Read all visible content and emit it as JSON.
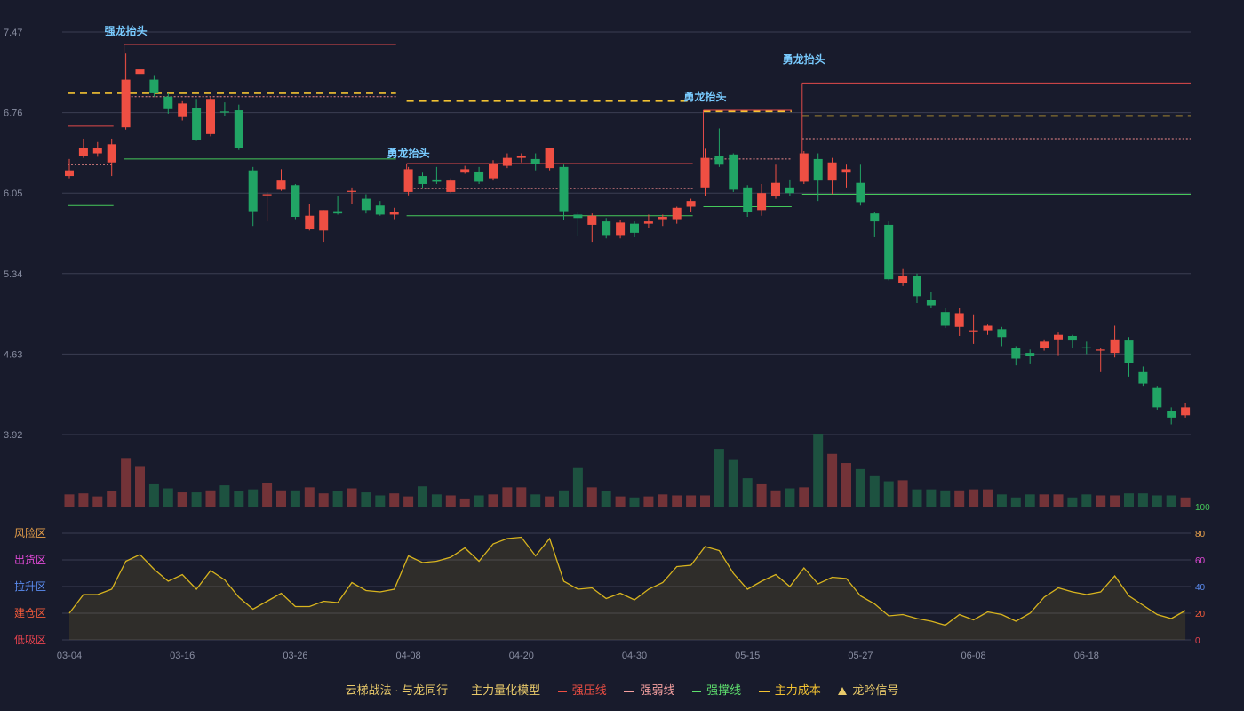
{
  "colors": {
    "background": "#181b2c",
    "grid": "#3a3e52",
    "up": "#ef4f43",
    "down": "#21a565",
    "volume_up": "#733338",
    "volume_down": "#1d5240",
    "pressure": "#e04a4a",
    "weak": "#f08a8a",
    "support": "#45c95a",
    "cost": "#f2c232",
    "signal": "#79cbff",
    "oscillator": "#d8b41e",
    "axis_text": "#8a8fa3"
  },
  "legend": {
    "title": "云梯战法 · 与龙同行——主力量化模型",
    "items": [
      {
        "label": "强压线",
        "color": "#ef4f43",
        "style": "solid"
      },
      {
        "label": "强弱线",
        "color": "#f5a0a0",
        "style": "dashed"
      },
      {
        "label": "强撑线",
        "color": "#5ee06e",
        "style": "solid"
      },
      {
        "label": "主力成本",
        "color": "#f2c232",
        "style": "dashed"
      },
      {
        "label": "龙吟信号",
        "color": "#e8c96a",
        "style": "triangle"
      }
    ]
  },
  "chart_data": {
    "type": "candlestick",
    "y_ticks": [
      "7.47",
      "6.76",
      "6.05",
      "5.34",
      "4.63",
      "3.92"
    ],
    "ylim": [
      3.92,
      7.47
    ],
    "x_tick_labels": [
      {
        "index": 0,
        "label": "03-04"
      },
      {
        "index": 8,
        "label": "03-16"
      },
      {
        "index": 16,
        "label": "03-26"
      },
      {
        "index": 24,
        "label": "04-08"
      },
      {
        "index": 32,
        "label": "04-20"
      },
      {
        "index": 40,
        "label": "04-30"
      },
      {
        "index": 48,
        "label": "05-15"
      },
      {
        "index": 56,
        "label": "05-27"
      },
      {
        "index": 64,
        "label": "06-08"
      },
      {
        "index": 72,
        "label": "06-18"
      }
    ],
    "candles": [
      [
        6.2,
        6.25,
        6.35,
        6.18
      ],
      [
        6.38,
        6.45,
        6.53,
        6.36
      ],
      [
        6.4,
        6.45,
        6.5,
        6.37
      ],
      [
        6.32,
        6.48,
        6.53,
        6.2
      ],
      [
        6.63,
        7.05,
        7.28,
        6.61
      ],
      [
        7.1,
        7.14,
        7.2,
        7.06
      ],
      [
        7.05,
        6.93,
        7.09,
        6.9
      ],
      [
        6.9,
        6.79,
        6.93,
        6.75
      ],
      [
        6.72,
        6.84,
        6.86,
        6.69
      ],
      [
        6.8,
        6.52,
        6.88,
        6.51
      ],
      [
        6.57,
        6.88,
        6.9,
        6.55
      ],
      [
        6.77,
        6.76,
        6.85,
        6.73
      ],
      [
        6.78,
        6.45,
        6.83,
        6.43
      ],
      [
        6.25,
        5.89,
        6.28,
        5.76
      ],
      [
        6.03,
        6.04,
        6.06,
        5.8
      ],
      [
        6.08,
        6.16,
        6.26,
        6.07
      ],
      [
        6.12,
        5.84,
        6.13,
        5.82
      ],
      [
        5.73,
        5.85,
        5.95,
        5.72
      ],
      [
        5.72,
        5.9,
        5.9,
        5.62
      ],
      [
        5.89,
        5.87,
        6.02,
        5.86
      ],
      [
        6.06,
        6.07,
        6.1,
        5.95
      ],
      [
        6.0,
        5.9,
        6.04,
        5.87
      ],
      [
        5.94,
        5.86,
        5.98,
        5.85
      ],
      [
        5.86,
        5.88,
        5.92,
        5.82
      ],
      [
        6.06,
        6.26,
        6.28,
        6.03
      ],
      [
        6.2,
        6.13,
        6.23,
        6.09
      ],
      [
        6.17,
        6.15,
        6.28,
        6.13
      ],
      [
        6.06,
        6.16,
        6.18,
        6.05
      ],
      [
        6.23,
        6.26,
        6.29,
        6.22
      ],
      [
        6.24,
        6.15,
        6.28,
        6.13
      ],
      [
        6.18,
        6.31,
        6.34,
        6.16
      ],
      [
        6.29,
        6.36,
        6.4,
        6.27
      ],
      [
        6.36,
        6.38,
        6.4,
        6.32
      ],
      [
        6.35,
        6.31,
        6.4,
        6.25
      ],
      [
        6.27,
        6.45,
        6.45,
        6.25
      ],
      [
        6.28,
        5.89,
        6.3,
        5.81
      ],
      [
        5.86,
        5.83,
        5.88,
        5.67
      ],
      [
        5.77,
        5.85,
        5.87,
        5.62
      ],
      [
        5.8,
        5.68,
        5.83,
        5.65
      ],
      [
        5.68,
        5.79,
        5.81,
        5.65
      ],
      [
        5.78,
        5.7,
        5.8,
        5.66
      ],
      [
        5.78,
        5.8,
        5.86,
        5.74
      ],
      [
        5.82,
        5.84,
        5.86,
        5.76
      ],
      [
        5.82,
        5.92,
        5.93,
        5.78
      ],
      [
        5.93,
        5.98,
        6.0,
        5.88
      ],
      [
        6.1,
        6.36,
        6.44,
        6.02
      ],
      [
        6.38,
        6.3,
        6.62,
        6.28
      ],
      [
        6.39,
        6.08,
        6.4,
        6.06
      ],
      [
        6.1,
        5.88,
        6.12,
        5.84
      ],
      [
        5.9,
        6.05,
        6.13,
        5.85
      ],
      [
        6.02,
        6.14,
        6.3,
        6.0
      ],
      [
        6.1,
        6.05,
        6.17,
        6.02
      ],
      [
        6.15,
        6.4,
        6.42,
        6.13
      ],
      [
        6.35,
        6.16,
        6.4,
        5.98
      ],
      [
        6.16,
        6.32,
        6.36,
        6.04
      ],
      [
        6.23,
        6.26,
        6.3,
        6.1
      ],
      [
        6.14,
        5.97,
        6.3,
        5.94
      ],
      [
        5.87,
        5.8,
        5.88,
        5.66
      ],
      [
        5.77,
        5.29,
        5.8,
        5.28
      ],
      [
        5.26,
        5.32,
        5.38,
        5.23
      ],
      [
        5.32,
        5.14,
        5.34,
        5.08
      ],
      [
        5.11,
        5.06,
        5.18,
        5.04
      ],
      [
        5.0,
        4.88,
        5.04,
        4.86
      ],
      [
        4.87,
        4.99,
        5.04,
        4.79
      ],
      [
        4.84,
        4.84,
        4.98,
        4.72
      ],
      [
        4.84,
        4.88,
        4.89,
        4.8
      ],
      [
        4.85,
        4.78,
        4.87,
        4.7
      ],
      [
        4.68,
        4.59,
        4.7,
        4.53
      ],
      [
        4.64,
        4.61,
        4.67,
        4.54
      ],
      [
        4.68,
        4.74,
        4.76,
        4.66
      ],
      [
        4.76,
        4.8,
        4.82,
        4.62
      ],
      [
        4.79,
        4.75,
        4.8,
        4.68
      ],
      [
        4.69,
        4.68,
        4.74,
        4.63
      ],
      [
        4.66,
        4.67,
        4.68,
        4.47
      ],
      [
        4.64,
        4.76,
        4.88,
        4.6
      ],
      [
        4.75,
        4.55,
        4.78,
        4.43
      ],
      [
        4.47,
        4.37,
        4.52,
        4.35
      ],
      [
        4.33,
        4.16,
        4.35,
        4.14
      ],
      [
        4.13,
        4.07,
        4.16,
        4.01
      ],
      [
        4.09,
        4.16,
        4.2,
        4.07
      ]
    ],
    "volume": [
      12,
      13,
      10,
      15,
      48,
      40,
      22,
      18,
      14,
      14,
      16,
      21,
      15,
      17,
      23,
      16,
      16,
      19,
      13,
      15,
      18,
      14,
      11,
      13,
      10,
      20,
      12,
      11,
      8,
      11,
      12,
      19,
      19,
      12,
      10,
      16,
      38,
      19,
      15,
      10,
      9,
      10,
      12,
      11,
      11,
      11,
      57,
      46,
      28,
      22,
      16,
      18,
      19,
      72,
      52,
      43,
      37,
      30,
      25,
      26,
      17,
      17,
      16,
      16,
      17,
      17,
      12,
      9,
      12,
      12,
      12,
      9,
      12,
      11,
      11,
      13,
      13,
      11,
      11,
      9
    ],
    "volume_axis_label": "100",
    "oscillator": {
      "zone_labels": [
        {
          "label": "风险区",
          "color": "#e8a04a"
        },
        {
          "label": "出货区",
          "color": "#e24ad8"
        },
        {
          "label": "拉升区",
          "color": "#5b8df2"
        },
        {
          "label": "建仓区",
          "color": "#f05a3a"
        },
        {
          "label": "低吸区",
          "color": "#e8434f"
        }
      ],
      "ticks": [
        {
          "value": 80,
          "label": "80",
          "color": "#e8a04a"
        },
        {
          "value": 60,
          "label": "60",
          "color": "#e24ad8"
        },
        {
          "value": 40,
          "label": "40",
          "color": "#5b8df2"
        },
        {
          "value": 20,
          "label": "20",
          "color": "#f05a3a"
        },
        {
          "value": 0,
          "label": "0",
          "color": "#e8434f"
        }
      ],
      "ylim": [
        0,
        80
      ],
      "values": [
        20,
        34,
        34,
        38,
        59,
        64,
        53,
        44,
        49,
        38,
        52,
        45,
        32,
        23,
        29,
        35,
        25,
        25,
        29,
        28,
        43,
        37,
        36,
        38,
        63,
        58,
        59,
        62,
        69,
        59,
        72,
        76,
        77,
        63,
        76,
        44,
        38,
        39,
        31,
        35,
        30,
        38,
        43,
        55,
        56,
        70,
        67,
        50,
        38,
        44,
        49,
        40,
        54,
        42,
        47,
        46,
        33,
        27,
        18,
        19,
        16,
        14,
        11,
        19,
        15,
        21,
        19,
        14,
        20,
        32,
        39,
        36,
        34,
        36,
        48,
        33,
        26,
        19,
        16,
        22
      ]
    },
    "signals": [
      {
        "index": 4,
        "label": "强龙抬头",
        "price": 7.4
      },
      {
        "index": 24,
        "label": "勇龙抬头",
        "price": 6.32
      },
      {
        "index": 45,
        "label": "勇龙抬头",
        "price": 6.82
      },
      {
        "index": 52,
        "label": "勇龙抬头",
        "price": 7.15
      }
    ],
    "levels": [
      {
        "kind": "pressure",
        "start": 0,
        "end": 3,
        "price": 6.64
      },
      {
        "kind": "weak",
        "start": 0,
        "end": 3,
        "price": 6.3
      },
      {
        "kind": "support",
        "start": 0,
        "end": 3,
        "price": 5.94
      },
      {
        "kind": "cost",
        "start": 0,
        "end": 23,
        "price": 6.93
      },
      {
        "kind": "pressure",
        "start": 4,
        "end": 23,
        "price": 7.36
      },
      {
        "kind": "weak",
        "start": 4,
        "end": 23,
        "price": 6.9
      },
      {
        "kind": "support",
        "start": 4,
        "end": 23,
        "price": 6.35
      },
      {
        "kind": "cost",
        "start": 24,
        "end": 44,
        "price": 6.86
      },
      {
        "kind": "pressure",
        "start": 24,
        "end": 44,
        "price": 6.31
      },
      {
        "kind": "weak",
        "start": 24,
        "end": 44,
        "price": 6.09
      },
      {
        "kind": "support",
        "start": 24,
        "end": 44,
        "price": 5.85
      },
      {
        "kind": "cost",
        "start": 45,
        "end": 51,
        "price": 6.77
      },
      {
        "kind": "pressure",
        "start": 45,
        "end": 51,
        "price": 6.78
      },
      {
        "kind": "weak",
        "start": 45,
        "end": 51,
        "price": 6.35
      },
      {
        "kind": "support",
        "start": 45,
        "end": 51,
        "price": 5.93
      },
      {
        "kind": "cost",
        "start": 52,
        "end": 79,
        "price": 6.73
      },
      {
        "kind": "pressure",
        "start": 52,
        "end": 79,
        "price": 7.02
      },
      {
        "kind": "weak",
        "start": 52,
        "end": 79,
        "price": 6.53
      },
      {
        "kind": "support",
        "start": 52,
        "end": 79,
        "price": 6.04
      }
    ]
  }
}
